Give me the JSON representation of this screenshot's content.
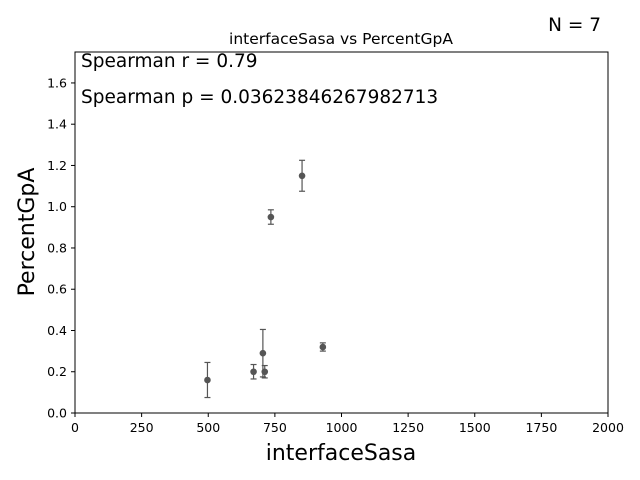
{
  "chart_data": {
    "type": "scatter",
    "title": "interfaceSasa vs PercentGpA",
    "xlabel": "interfaceSasa",
    "ylabel": "PercentGpA",
    "xlim": [
      0,
      2000
    ],
    "ylim": [
      0,
      1.75
    ],
    "x_ticks": [
      0,
      250,
      500,
      750,
      1000,
      1250,
      1500,
      1750,
      2000
    ],
    "x_tick_labels": [
      "0",
      "250",
      "500",
      "750",
      "1000",
      "1250",
      "1500",
      "1750",
      "2000"
    ],
    "y_ticks": [
      0.0,
      0.2,
      0.4,
      0.6,
      0.8,
      1.0,
      1.2,
      1.4,
      1.6
    ],
    "y_tick_labels": [
      "0.0",
      "0.2",
      "0.4",
      "0.6",
      "0.8",
      "1.0",
      "1.2",
      "1.4",
      "1.6"
    ],
    "grid": false,
    "count_label": "N = 7",
    "annotations": [
      "Spearman r = 0.79",
      "Spearman p = 0.03623846267982713"
    ],
    "marker_color": "#555555",
    "points": [
      {
        "x": 497,
        "y": 0.16,
        "err": 0.085
      },
      {
        "x": 670,
        "y": 0.2,
        "err": 0.035
      },
      {
        "x": 705,
        "y": 0.29,
        "err": 0.115
      },
      {
        "x": 712,
        "y": 0.2,
        "err": 0.03
      },
      {
        "x": 735,
        "y": 0.95,
        "err": 0.035
      },
      {
        "x": 852,
        "y": 1.15,
        "err": 0.075
      },
      {
        "x": 930,
        "y": 0.32,
        "err": 0.02
      }
    ]
  }
}
